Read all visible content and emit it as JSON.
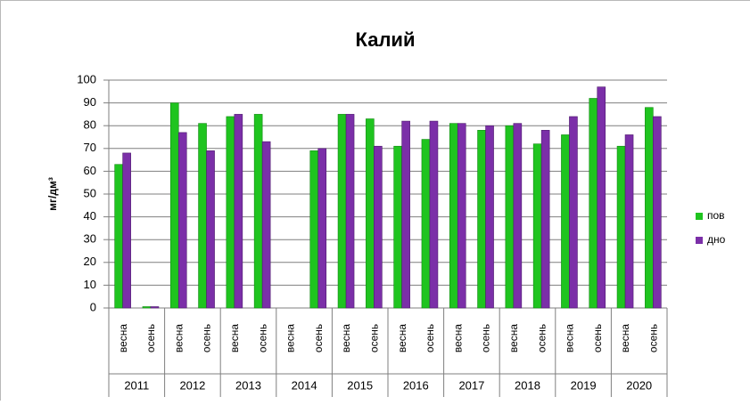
{
  "chart_data": {
    "type": "bar",
    "title": "Калий",
    "y_label": "мг/дм³",
    "categories": [
      "весна",
      "осень",
      "весна",
      "осень",
      "весна",
      "осень",
      "весна",
      "осень",
      "весна",
      "осень",
      "весна",
      "осень",
      "весна",
      "осень",
      "весна",
      "осень",
      "весна",
      "осень",
      "весна",
      "осень"
    ],
    "groups": [
      "2011",
      "2012",
      "2013",
      "2014",
      "2015",
      "2016",
      "2017",
      "2018",
      "2019",
      "2020"
    ],
    "series": [
      {
        "name": "пов",
        "color": "#1fc41f",
        "values": [
          63,
          0,
          90,
          81,
          84,
          85,
          null,
          69,
          85,
          83,
          71,
          74,
          81,
          78,
          80,
          72,
          76,
          92,
          71,
          88
        ]
      },
      {
        "name": "дно",
        "color": "#7b2fa8",
        "values": [
          68,
          0,
          77,
          69,
          85,
          73,
          null,
          70,
          85,
          71,
          82,
          82,
          81,
          80,
          81,
          78,
          84,
          97,
          76,
          84
        ]
      }
    ],
    "ylim": [
      0,
      100
    ],
    "yticks": [
      0,
      10,
      20,
      30,
      40,
      50,
      60,
      70,
      80,
      90,
      100
    ],
    "grid": true,
    "legend": "right"
  }
}
